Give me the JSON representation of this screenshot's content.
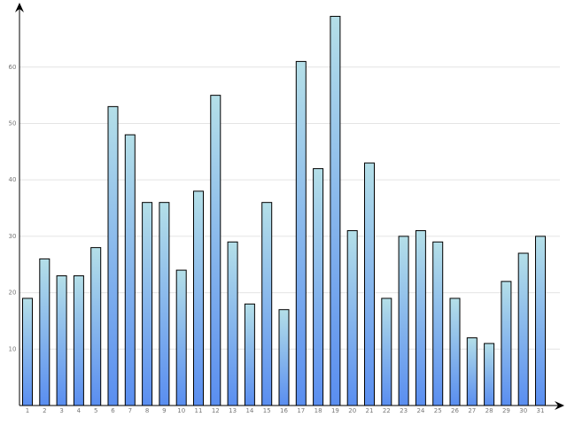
{
  "chart_data": {
    "type": "bar",
    "categories": [
      "1",
      "2",
      "3",
      "4",
      "5",
      "6",
      "7",
      "8",
      "9",
      "10",
      "11",
      "12",
      "13",
      "14",
      "15",
      "16",
      "17",
      "18",
      "19",
      "20",
      "21",
      "22",
      "23",
      "24",
      "25",
      "26",
      "27",
      "28",
      "29",
      "30",
      "31"
    ],
    "values": [
      19,
      26,
      23,
      23,
      28,
      53,
      48,
      36,
      36,
      24,
      38,
      55,
      29,
      18,
      36,
      17,
      61,
      42,
      69,
      31,
      43,
      19,
      30,
      31,
      29,
      19,
      12,
      11,
      22,
      27,
      30
    ],
    "color_top": "#b4dfe8",
    "color_bottom": "#5a8ef0",
    "ylim": [
      0,
      71
    ],
    "yticks": [
      10,
      20,
      30,
      40,
      50,
      60
    ],
    "grid": true
  }
}
